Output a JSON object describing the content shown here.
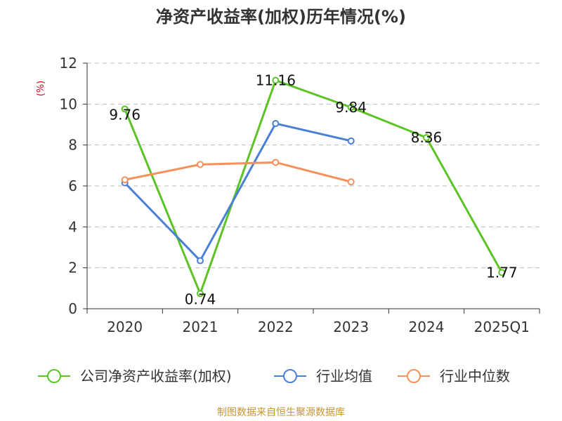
{
  "chart_data": {
    "type": "line",
    "title": "净资产收益率(加权)历年情况(%)",
    "ylabel": "(%)",
    "xlabel": "",
    "categories": [
      "2020",
      "2021",
      "2022",
      "2023",
      "2024",
      "2025Q1"
    ],
    "ylim": [
      0,
      12
    ],
    "yticks": [
      0,
      2,
      4,
      6,
      8,
      10,
      12
    ],
    "grid": true,
    "legend_position": "bottom",
    "series": [
      {
        "name": "公司净资产收益率(加权)",
        "color": "#5bc424",
        "values": [
          9.76,
          0.74,
          11.16,
          9.84,
          8.36,
          1.77
        ],
        "labels": [
          "9.76",
          "0.74",
          "11.16",
          "9.84",
          "8.36",
          "1.77"
        ],
        "label_position": [
          "below",
          "below",
          "on",
          "on",
          "on",
          "on"
        ]
      },
      {
        "name": "行业均值",
        "color": "#4a7fd6",
        "values": [
          6.15,
          2.35,
          9.05,
          8.2,
          null,
          null
        ]
      },
      {
        "name": "行业中位数",
        "color": "#f6905a",
        "values": [
          6.3,
          7.05,
          7.15,
          6.2,
          null,
          null
        ]
      }
    ],
    "source": "制图数据来自恒生聚源数据库"
  }
}
